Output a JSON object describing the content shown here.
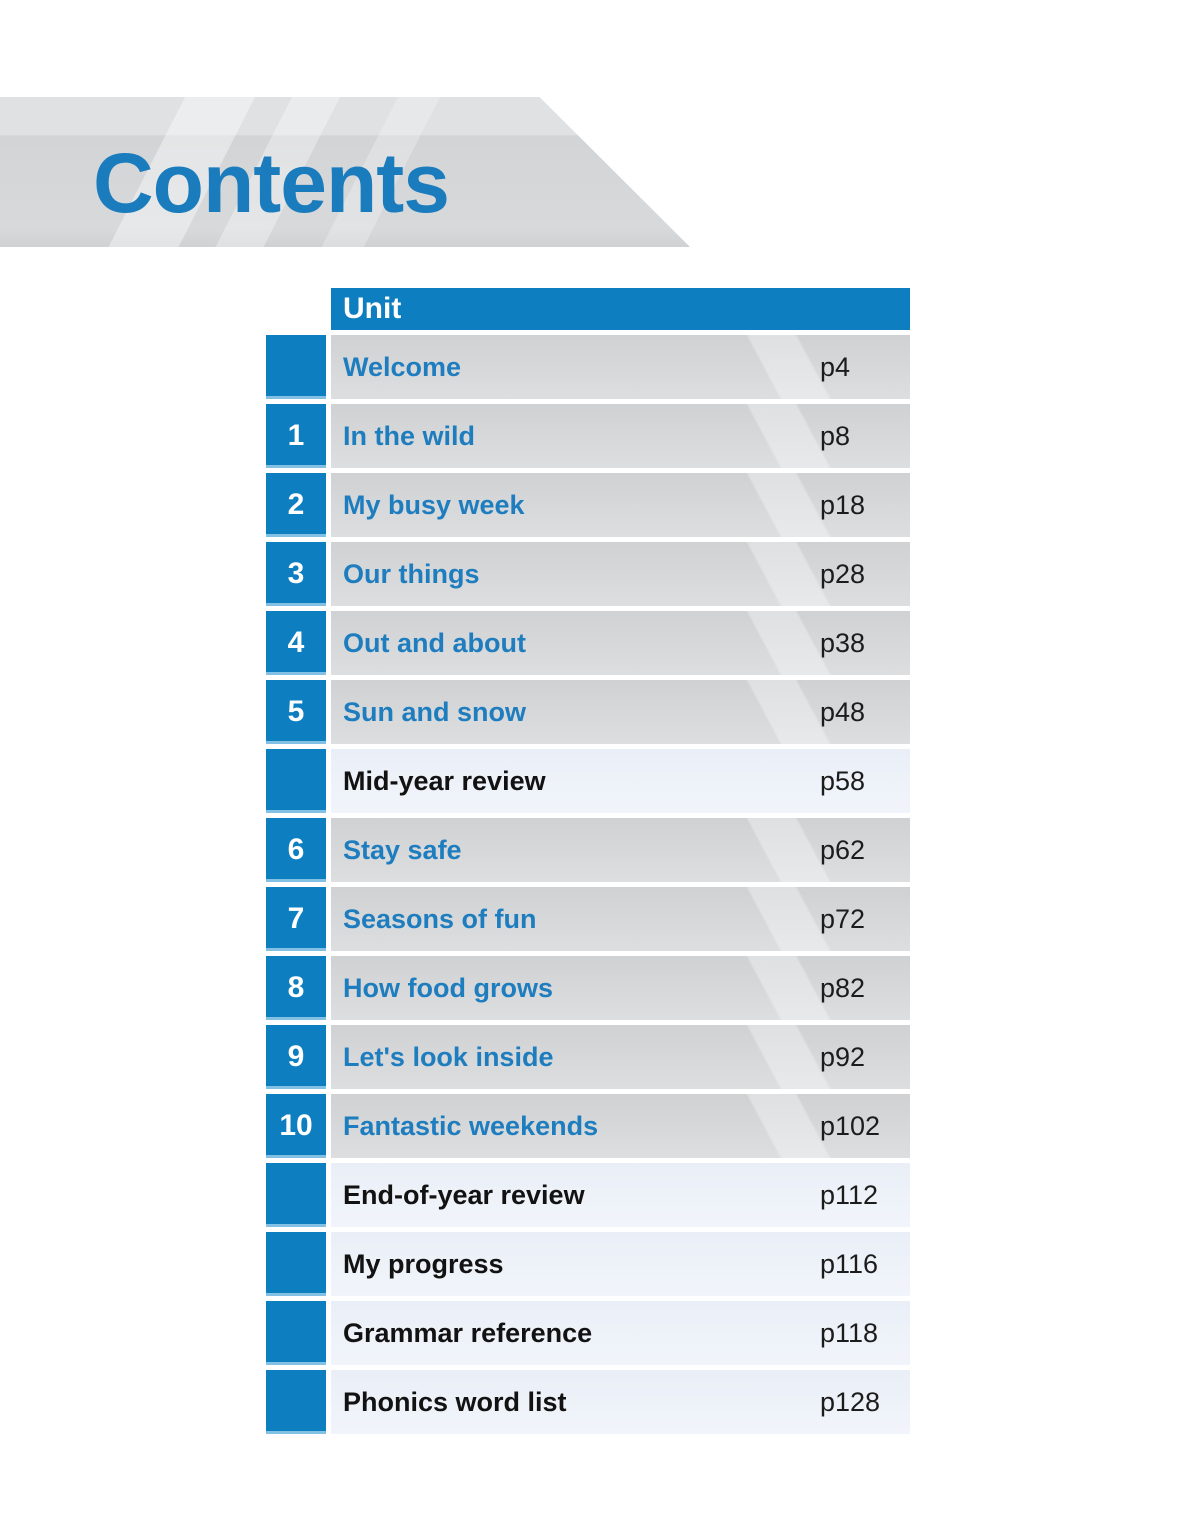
{
  "page_title": "Contents",
  "colors": {
    "brand_blue": "#0d7ec0",
    "title_blue": "#1e7dbe",
    "row_gray": "#d2d4d6",
    "row_light": "#edf1f8",
    "banner_gray": "#d5d7d9"
  },
  "table": {
    "header": "Unit",
    "rows": [
      {
        "num": "",
        "title": "Welcome",
        "page": "p4"
      },
      {
        "num": "1",
        "title": "In the wild",
        "page": "p8"
      },
      {
        "num": "2",
        "title": "My busy week",
        "page": "p18"
      },
      {
        "num": "3",
        "title": "Our things",
        "page": "p28"
      },
      {
        "num": "4",
        "title": "Out and about",
        "page": "p38"
      },
      {
        "num": "5",
        "title": "Sun and snow",
        "page": "p48"
      },
      {
        "num": "",
        "title": "Mid-year review",
        "page": "p58"
      },
      {
        "num": "6",
        "title": "Stay safe",
        "page": "p62"
      },
      {
        "num": "7",
        "title": "Seasons of fun",
        "page": "p72"
      },
      {
        "num": "8",
        "title": "How food grows",
        "page": "p82"
      },
      {
        "num": "9",
        "title": "Let's look inside",
        "page": "p92"
      },
      {
        "num": "10",
        "title": "Fantastic weekends",
        "page": "p102"
      },
      {
        "num": "",
        "title": "End-of-year review",
        "page": "p112"
      },
      {
        "num": "",
        "title": "My progress",
        "page": "p116"
      },
      {
        "num": "",
        "title": "Grammar reference",
        "page": "p118"
      },
      {
        "num": "",
        "title": "Phonics word list",
        "page": "p128"
      }
    ]
  }
}
